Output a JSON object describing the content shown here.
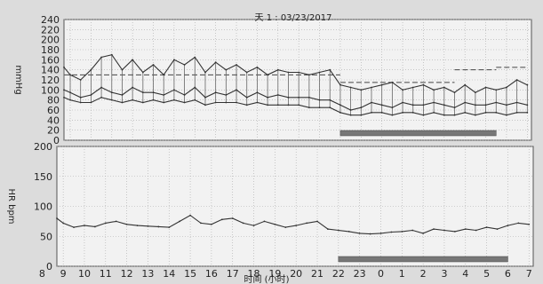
{
  "chart_data": [
    {
      "type": "line",
      "title": "天 1 : 03/23/2017",
      "ylabel": "mmHg",
      "xlabel": "",
      "ylim": [
        0,
        240
      ],
      "yticks": [
        0,
        20,
        40,
        60,
        80,
        100,
        120,
        140,
        160,
        180,
        200,
        220,
        240
      ],
      "grid": true,
      "x": [
        8.7,
        9.0,
        9.5,
        10.0,
        10.5,
        11.0,
        11.5,
        12.0,
        12.5,
        13.0,
        13.5,
        14.0,
        14.5,
        15.0,
        15.5,
        16.0,
        16.5,
        17.0,
        17.5,
        18.0,
        18.5,
        19.0,
        19.5,
        20.0,
        20.5,
        21.0,
        21.5,
        22.0,
        22.5,
        23.0,
        23.5,
        24.0,
        24.5,
        25.0,
        25.5,
        26.0,
        26.5,
        27.0,
        27.5,
        28.0,
        28.5,
        29.0,
        29.5,
        30.0,
        30.5,
        31.0
      ],
      "series": [
        {
          "values": [
            145,
            130,
            120,
            140,
            165,
            170,
            140,
            160,
            135,
            150,
            130,
            160,
            150,
            165,
            135,
            155,
            140,
            150,
            135,
            145,
            130,
            140,
            135,
            135,
            130,
            135,
            140,
            110,
            105,
            100,
            105,
            110,
            115,
            100,
            105,
            110,
            100,
            105,
            95,
            110,
            95,
            105,
            100,
            105,
            120,
            110
          ]
        },
        {
          "values": [
            100,
            95,
            85,
            90,
            105,
            95,
            90,
            105,
            95,
            95,
            90,
            100,
            90,
            105,
            85,
            95,
            90,
            100,
            85,
            95,
            85,
            90,
            85,
            85,
            85,
            80,
            80,
            70,
            60,
            65,
            75,
            70,
            65,
            75,
            70,
            70,
            75,
            70,
            65,
            75,
            70,
            70,
            75,
            70,
            75,
            70
          ]
        },
        {
          "values": [
            85,
            80,
            75,
            75,
            85,
            80,
            75,
            80,
            75,
            80,
            75,
            80,
            75,
            80,
            70,
            75,
            75,
            75,
            70,
            75,
            70,
            70,
            70,
            70,
            65,
            65,
            65,
            55,
            50,
            50,
            55,
            55,
            50,
            55,
            55,
            50,
            55,
            50,
            50,
            55,
            50,
            55,
            55,
            50,
            55,
            55
          ]
        }
      ],
      "reference_lines": [
        {
          "x_start": 8.7,
          "x_end": 22.0,
          "y": 130
        },
        {
          "x_start": 22.0,
          "x_end": 27.5,
          "y": 115
        },
        {
          "x_start": 27.5,
          "x_end": 29.5,
          "y": 140
        },
        {
          "x_start": 29.5,
          "x_end": 31.0,
          "y": 145
        }
      ],
      "shaded_band": {
        "x_start": 22.0,
        "x_end": 29.5
      }
    },
    {
      "type": "line",
      "title": "",
      "ylabel": "HR bpm",
      "xlabel": "时间 (小时)",
      "ylim": [
        0,
        200
      ],
      "yticks": [
        0,
        50,
        100,
        150,
        200
      ],
      "grid": true,
      "x_tick_labels": [
        "8",
        "9",
        "10",
        "11",
        "12",
        "13",
        "14",
        "15",
        "16",
        "17",
        "18",
        "19",
        "20",
        "21",
        "22",
        "23",
        "0",
        "1",
        "2",
        "3",
        "4",
        "5",
        "6",
        "7"
      ],
      "x": [
        8.7,
        9.0,
        9.5,
        10.0,
        10.5,
        11.0,
        11.5,
        12.0,
        12.5,
        13.0,
        13.5,
        14.0,
        14.5,
        15.0,
        15.5,
        16.0,
        16.5,
        17.0,
        17.5,
        18.0,
        18.5,
        19.0,
        19.5,
        20.0,
        20.5,
        21.0,
        21.5,
        22.0,
        22.5,
        23.0,
        23.5,
        24.0,
        24.5,
        25.0,
        25.5,
        26.0,
        26.5,
        27.0,
        27.5,
        28.0,
        28.5,
        29.0,
        29.5,
        30.0,
        30.5,
        31.0
      ],
      "series": [
        {
          "values": [
            80,
            72,
            65,
            68,
            66,
            72,
            75,
            70,
            68,
            67,
            66,
            65,
            75,
            85,
            72,
            70,
            78,
            80,
            72,
            68,
            75,
            70,
            65,
            68,
            72,
            75,
            62,
            60,
            58,
            55,
            54,
            55,
            57,
            58,
            60,
            55,
            62,
            60,
            58,
            62,
            60,
            65,
            62,
            68,
            72,
            70
          ]
        }
      ],
      "shaded_band": {
        "x_start": 22.0,
        "x_end": 30.0
      }
    }
  ]
}
